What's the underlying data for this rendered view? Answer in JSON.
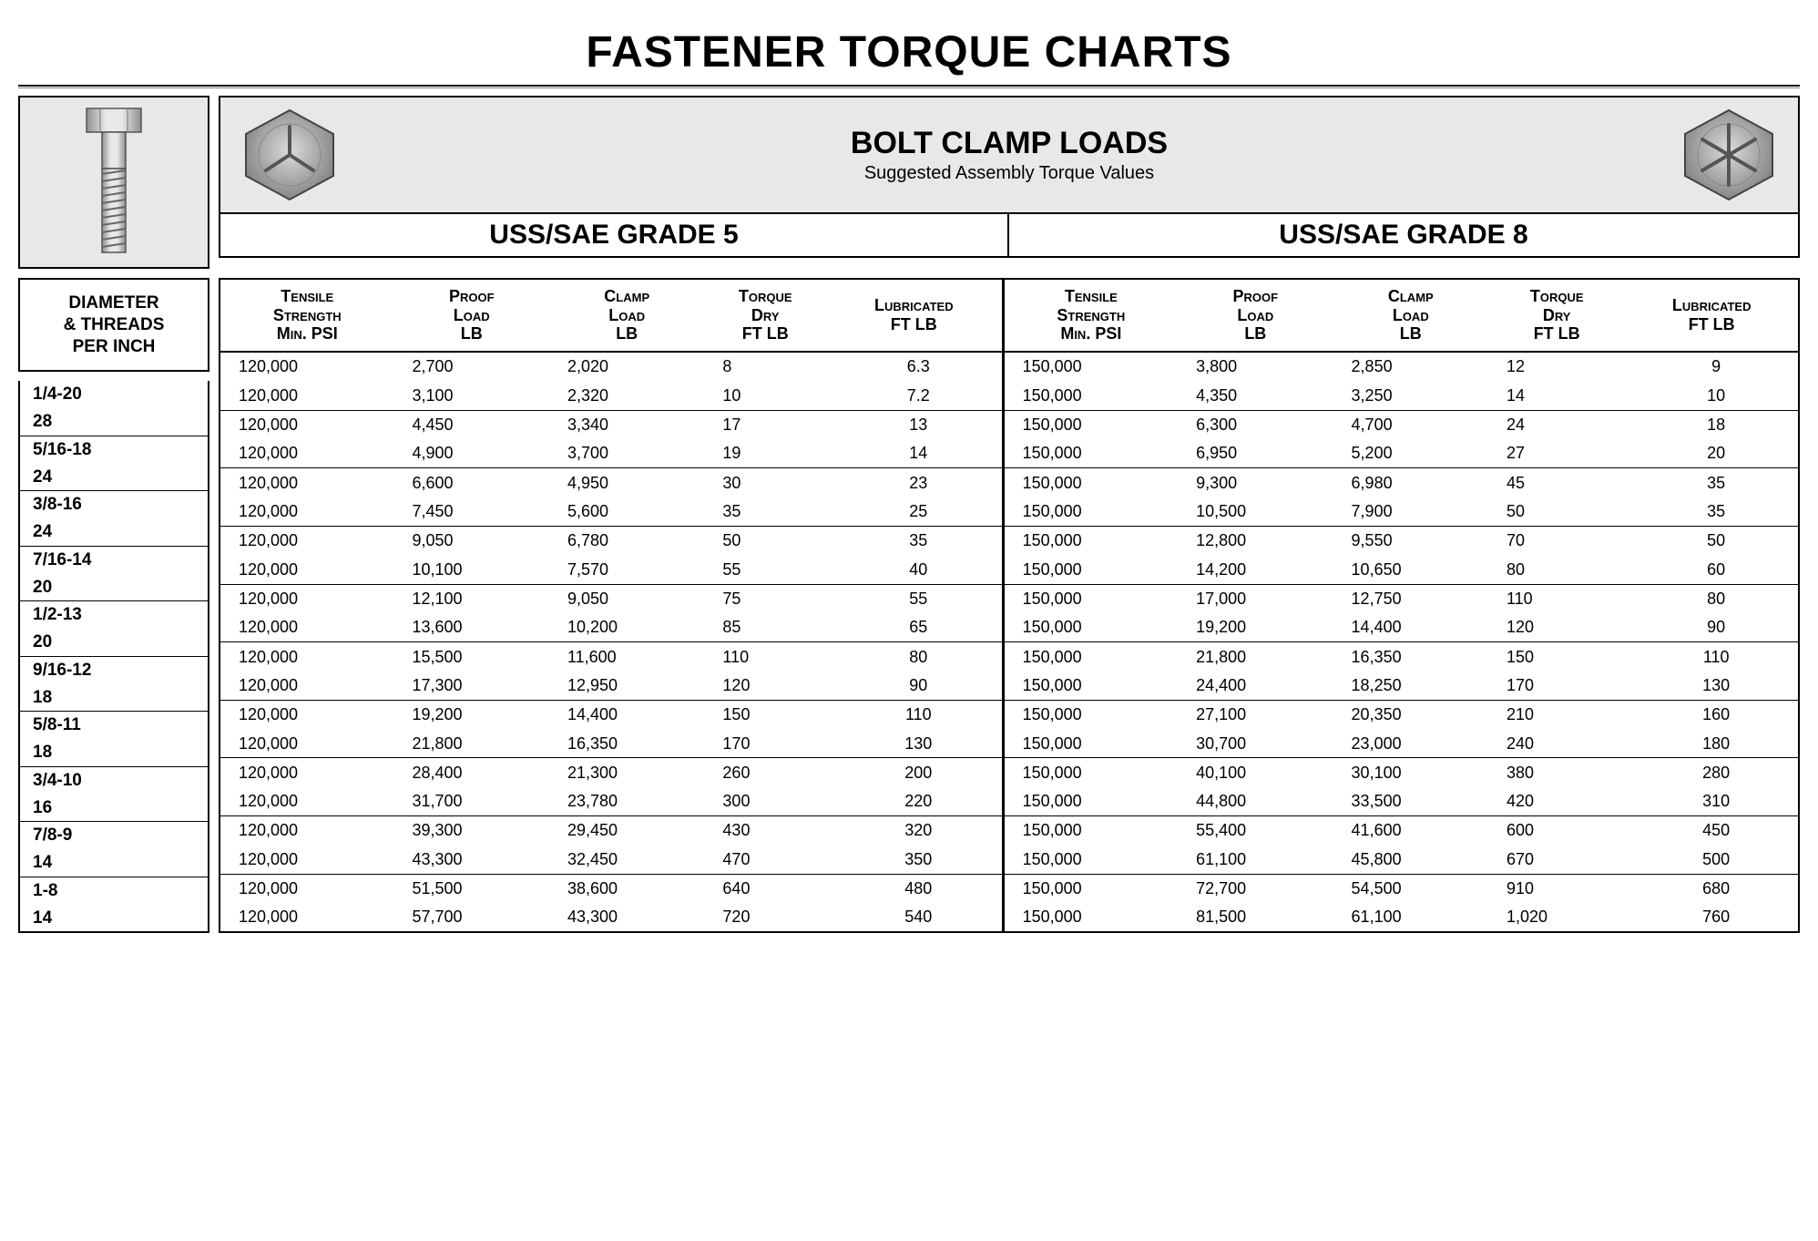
{
  "page_title": "FASTENER TORQUE CHARTS",
  "header": {
    "title": "BOLT CLAMP LOADS",
    "subtitle": "Suggested Assembly Torque Values"
  },
  "grades": {
    "left": "USS/SAE GRADE 5",
    "right": "USS/SAE GRADE 8"
  },
  "diameter_header": {
    "line1": "DIAMETER",
    "line2": "& THREADS",
    "line3": "PER INCH"
  },
  "columns": {
    "tensile": {
      "l1": "Tensile",
      "l2": "Strength",
      "l3": "Min. PSI"
    },
    "proof": {
      "l1": "Proof",
      "l2": "Load",
      "l3": "LB"
    },
    "clamp": {
      "l1": "Clamp",
      "l2": "Load",
      "l3": "LB"
    },
    "torque_dry": {
      "l1": "Torque",
      "l2": "Dry",
      "l3": "FT LB"
    },
    "lubricated": {
      "l1": "Lubricated",
      "l2": "FT LB"
    }
  },
  "rows": [
    {
      "diam": [
        "1/4-20",
        "28"
      ],
      "g5": {
        "tensile": [
          "120,000",
          "120,000"
        ],
        "proof": [
          "2,700",
          "3,100"
        ],
        "clamp": [
          "2,020",
          "2,320"
        ],
        "dry": [
          "8",
          "10"
        ],
        "lub": [
          "6.3",
          "7.2"
        ]
      },
      "g8": {
        "tensile": [
          "150,000",
          "150,000"
        ],
        "proof": [
          "3,800",
          "4,350"
        ],
        "clamp": [
          "2,850",
          "3,250"
        ],
        "dry": [
          "12",
          "14"
        ],
        "lub": [
          "9",
          "10"
        ]
      }
    },
    {
      "diam": [
        "5/16-18",
        "24"
      ],
      "g5": {
        "tensile": [
          "120,000",
          "120,000"
        ],
        "proof": [
          "4,450",
          "4,900"
        ],
        "clamp": [
          "3,340",
          "3,700"
        ],
        "dry": [
          "17",
          "19"
        ],
        "lub": [
          "13",
          "14"
        ]
      },
      "g8": {
        "tensile": [
          "150,000",
          "150,000"
        ],
        "proof": [
          "6,300",
          "6,950"
        ],
        "clamp": [
          "4,700",
          "5,200"
        ],
        "dry": [
          "24",
          "27"
        ],
        "lub": [
          "18",
          "20"
        ]
      }
    },
    {
      "diam": [
        "3/8-16",
        "24"
      ],
      "g5": {
        "tensile": [
          "120,000",
          "120,000"
        ],
        "proof": [
          "6,600",
          "7,450"
        ],
        "clamp": [
          "4,950",
          "5,600"
        ],
        "dry": [
          "30",
          "35"
        ],
        "lub": [
          "23",
          "25"
        ]
      },
      "g8": {
        "tensile": [
          "150,000",
          "150,000"
        ],
        "proof": [
          "9,300",
          "10,500"
        ],
        "clamp": [
          "6,980",
          "7,900"
        ],
        "dry": [
          "45",
          "50"
        ],
        "lub": [
          "35",
          "35"
        ]
      }
    },
    {
      "diam": [
        "7/16-14",
        "20"
      ],
      "g5": {
        "tensile": [
          "120,000",
          "120,000"
        ],
        "proof": [
          "9,050",
          "10,100"
        ],
        "clamp": [
          "6,780",
          "7,570"
        ],
        "dry": [
          "50",
          "55"
        ],
        "lub": [
          "35",
          "40"
        ]
      },
      "g8": {
        "tensile": [
          "150,000",
          "150,000"
        ],
        "proof": [
          "12,800",
          "14,200"
        ],
        "clamp": [
          "9,550",
          "10,650"
        ],
        "dry": [
          "70",
          "80"
        ],
        "lub": [
          "50",
          "60"
        ]
      }
    },
    {
      "diam": [
        "1/2-13",
        "20"
      ],
      "g5": {
        "tensile": [
          "120,000",
          "120,000"
        ],
        "proof": [
          "12,100",
          "13,600"
        ],
        "clamp": [
          "9,050",
          "10,200"
        ],
        "dry": [
          "75",
          "85"
        ],
        "lub": [
          "55",
          "65"
        ]
      },
      "g8": {
        "tensile": [
          "150,000",
          "150,000"
        ],
        "proof": [
          "17,000",
          "19,200"
        ],
        "clamp": [
          "12,750",
          "14,400"
        ],
        "dry": [
          "110",
          "120"
        ],
        "lub": [
          "80",
          "90"
        ]
      }
    },
    {
      "diam": [
        "9/16-12",
        "18"
      ],
      "g5": {
        "tensile": [
          "120,000",
          "120,000"
        ],
        "proof": [
          "15,500",
          "17,300"
        ],
        "clamp": [
          "11,600",
          "12,950"
        ],
        "dry": [
          "110",
          "120"
        ],
        "lub": [
          "80",
          "90"
        ]
      },
      "g8": {
        "tensile": [
          "150,000",
          "150,000"
        ],
        "proof": [
          "21,800",
          "24,400"
        ],
        "clamp": [
          "16,350",
          "18,250"
        ],
        "dry": [
          "150",
          "170"
        ],
        "lub": [
          "110",
          "130"
        ]
      }
    },
    {
      "diam": [
        "5/8-11",
        "18"
      ],
      "g5": {
        "tensile": [
          "120,000",
          "120,000"
        ],
        "proof": [
          "19,200",
          "21,800"
        ],
        "clamp": [
          "14,400",
          "16,350"
        ],
        "dry": [
          "150",
          "170"
        ],
        "lub": [
          "110",
          "130"
        ]
      },
      "g8": {
        "tensile": [
          "150,000",
          "150,000"
        ],
        "proof": [
          "27,100",
          "30,700"
        ],
        "clamp": [
          "20,350",
          "23,000"
        ],
        "dry": [
          "210",
          "240"
        ],
        "lub": [
          "160",
          "180"
        ]
      }
    },
    {
      "diam": [
        "3/4-10",
        "16"
      ],
      "g5": {
        "tensile": [
          "120,000",
          "120,000"
        ],
        "proof": [
          "28,400",
          "31,700"
        ],
        "clamp": [
          "21,300",
          "23,780"
        ],
        "dry": [
          "260",
          "300"
        ],
        "lub": [
          "200",
          "220"
        ]
      },
      "g8": {
        "tensile": [
          "150,000",
          "150,000"
        ],
        "proof": [
          "40,100",
          "44,800"
        ],
        "clamp": [
          "30,100",
          "33,500"
        ],
        "dry": [
          "380",
          "420"
        ],
        "lub": [
          "280",
          "310"
        ]
      }
    },
    {
      "diam": [
        "7/8-9",
        "14"
      ],
      "g5": {
        "tensile": [
          "120,000",
          "120,000"
        ],
        "proof": [
          "39,300",
          "43,300"
        ],
        "clamp": [
          "29,450",
          "32,450"
        ],
        "dry": [
          "430",
          "470"
        ],
        "lub": [
          "320",
          "350"
        ]
      },
      "g8": {
        "tensile": [
          "150,000",
          "150,000"
        ],
        "proof": [
          "55,400",
          "61,100"
        ],
        "clamp": [
          "41,600",
          "45,800"
        ],
        "dry": [
          "600",
          "670"
        ],
        "lub": [
          "450",
          "500"
        ]
      }
    },
    {
      "diam": [
        "1-8",
        "14"
      ],
      "g5": {
        "tensile": [
          "120,000",
          "120,000"
        ],
        "proof": [
          "51,500",
          "57,700"
        ],
        "clamp": [
          "38,600",
          "43,300"
        ],
        "dry": [
          "640",
          "720"
        ],
        "lub": [
          "480",
          "540"
        ]
      },
      "g8": {
        "tensile": [
          "150,000",
          "150,000"
        ],
        "proof": [
          "72,700",
          "81,500"
        ],
        "clamp": [
          "54,500",
          "61,100"
        ],
        "dry": [
          "910",
          "1,020"
        ],
        "lub": [
          "680",
          "760"
        ]
      }
    }
  ],
  "style": {
    "background": "#ffffff",
    "header_bg": "#e8e8e8",
    "border_color": "#000000",
    "title_fontsize": 48,
    "grade_fontsize": 30,
    "cell_fontsize": 18,
    "bolt_fill": "#b9b9b9",
    "bolt_stroke": "#5a5a5a",
    "hex_radial_inner": "#d8d8d8",
    "hex_radial_outer": "#8a8a8a"
  }
}
